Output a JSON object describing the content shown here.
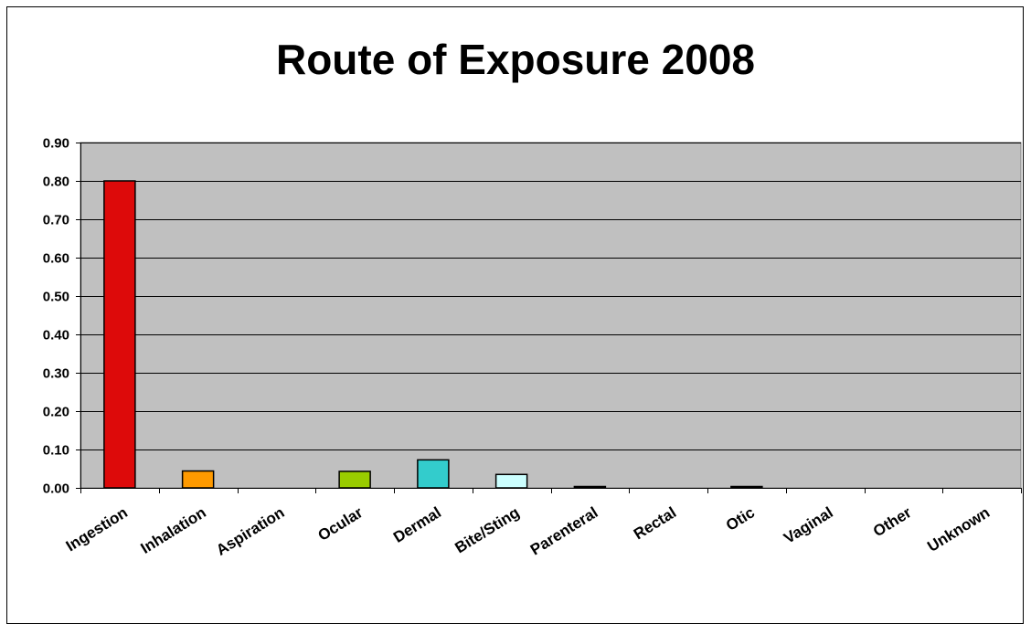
{
  "chart_data": {
    "type": "bar",
    "title": "Route of Exposure 2008",
    "xlabel": "",
    "ylabel": "",
    "categories": [
      "Ingestion",
      "Inhalation",
      "Aspiration",
      "Ocular",
      "Dermal",
      "Bite/Sting",
      "Parenteral",
      "Rectal",
      "Otic",
      "Vaginal",
      "Other",
      "Unknown"
    ],
    "values": [
      0.8,
      0.044,
      0.0,
      0.043,
      0.073,
      0.035,
      0.003,
      0.0,
      0.001,
      0.0,
      0.0,
      0.0
    ],
    "colors": [
      "#dd0a0a",
      "#ff9a00",
      "#cc6666",
      "#99cc00",
      "#33cccc",
      "#ccffff",
      "#333333",
      "#888888",
      "#666666",
      "#888888",
      "#888888",
      "#888888"
    ],
    "ylim": [
      0,
      0.9
    ],
    "yticks": [
      "0.00",
      "0.10",
      "0.20",
      "0.30",
      "0.40",
      "0.50",
      "0.60",
      "0.70",
      "0.80",
      "0.90"
    ],
    "plot_background": "#c0c0c0",
    "grid": true,
    "legend": "none"
  }
}
